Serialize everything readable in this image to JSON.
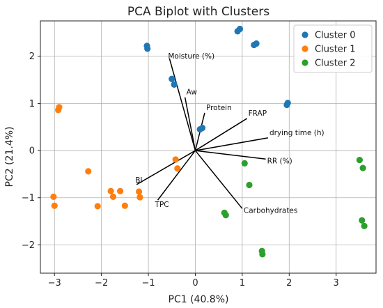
{
  "chart_data": {
    "type": "scatter",
    "title": "PCA Biplot with Clusters",
    "xlabel": "PC1 (40.8%)",
    "ylabel": "PC2 (21.4%)",
    "xlim": [
      -3.3,
      3.85
    ],
    "ylim": [
      -2.6,
      2.75
    ],
    "xticks": [
      -3,
      -2,
      -1,
      0,
      1,
      2,
      3
    ],
    "yticks": [
      -2,
      -1,
      0,
      1,
      2
    ],
    "grid": true,
    "legend_position": "top-right",
    "series": [
      {
        "name": "Cluster 0",
        "color": "#1f77b4",
        "points": [
          [
            -1.03,
            2.22
          ],
          [
            -1.02,
            2.16
          ],
          [
            0.9,
            2.53
          ],
          [
            0.95,
            2.58
          ],
          [
            1.25,
            2.24
          ],
          [
            1.3,
            2.27
          ],
          [
            -0.5,
            1.52
          ],
          [
            -0.45,
            1.4
          ],
          [
            0.1,
            0.45
          ],
          [
            0.15,
            0.48
          ],
          [
            1.95,
            0.97
          ],
          [
            1.97,
            1.01
          ]
        ]
      },
      {
        "name": "Cluster 1",
        "color": "#ff7f0e",
        "points": [
          [
            -2.9,
            0.92
          ],
          [
            -2.92,
            0.86
          ],
          [
            -3.02,
            -0.98
          ],
          [
            -3.0,
            -1.17
          ],
          [
            -2.28,
            -0.44
          ],
          [
            -2.08,
            -1.18
          ],
          [
            -1.8,
            -0.86
          ],
          [
            -1.75,
            -0.98
          ],
          [
            -1.6,
            -0.86
          ],
          [
            -1.5,
            -1.17
          ],
          [
            -1.2,
            -0.87
          ],
          [
            -1.18,
            -0.99
          ],
          [
            -0.42,
            -0.19
          ],
          [
            -0.38,
            -0.38
          ]
        ]
      },
      {
        "name": "Cluster 2",
        "color": "#2ca02c",
        "points": [
          [
            1.05,
            -0.27
          ],
          [
            1.15,
            -0.73
          ],
          [
            0.62,
            -1.32
          ],
          [
            0.65,
            -1.37
          ],
          [
            1.42,
            -2.13
          ],
          [
            1.43,
            -2.2
          ],
          [
            3.5,
            -0.2
          ],
          [
            3.57,
            -0.37
          ],
          [
            3.55,
            -1.48
          ],
          [
            3.6,
            -1.6
          ]
        ]
      }
    ],
    "loadings": [
      {
        "label": "Moisture (%)",
        "x": -0.55,
        "y": 1.95
      },
      {
        "label": "Aw",
        "x": -0.22,
        "y": 1.13
      },
      {
        "label": "Protein",
        "x": 0.2,
        "y": 0.8
      },
      {
        "label": "FRAP",
        "x": 1.1,
        "y": 0.68
      },
      {
        "label": "drying time (h)",
        "x": 1.55,
        "y": 0.27
      },
      {
        "label": "RR (%)",
        "x": 1.5,
        "y": -0.18
      },
      {
        "label": "Carbohydrates",
        "x": 1.0,
        "y": -1.23
      },
      {
        "label": "TPC",
        "x": -0.8,
        "y": -1.05
      },
      {
        "label": "BI",
        "x": -1.25,
        "y": -0.72
      }
    ]
  }
}
